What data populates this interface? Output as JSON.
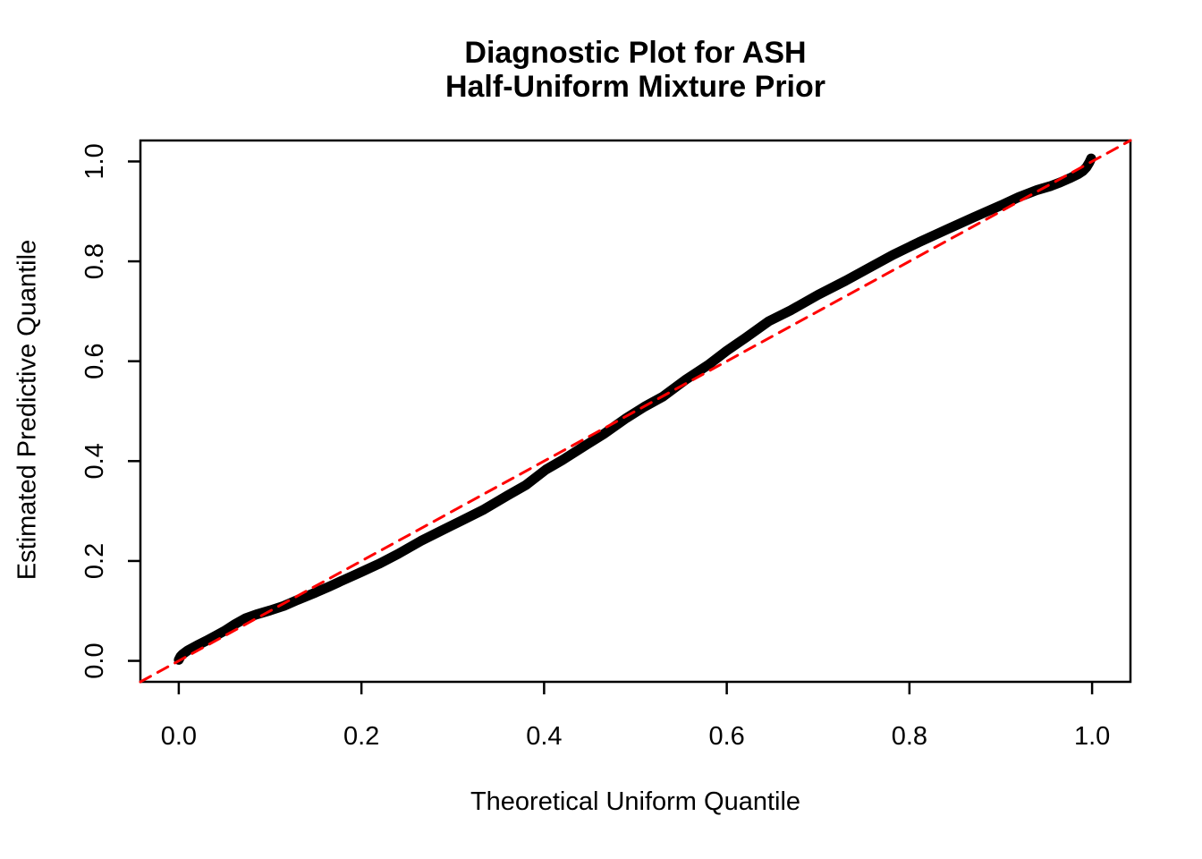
{
  "title": {
    "line1": "Diagnostic Plot for ASH",
    "line2": "Half-Uniform Mixture Prior"
  },
  "chart_data": {
    "type": "line",
    "title": "Diagnostic Plot for ASH\nHalf-Uniform Mixture Prior",
    "xlabel": "Theoretical Uniform Quantile",
    "ylabel": "Estimated Predictive Quantile",
    "xlim": [
      -0.042,
      1.042
    ],
    "ylim": [
      -0.042,
      1.042
    ],
    "x_ticks": [
      0.0,
      0.2,
      0.4,
      0.6,
      0.8,
      1.0
    ],
    "y_ticks": [
      0.0,
      0.2,
      0.4,
      0.6,
      0.8,
      1.0
    ],
    "x_tick_labels": [
      "0.0",
      "0.2",
      "0.4",
      "0.6",
      "0.8",
      "1.0"
    ],
    "y_tick_labels": [
      "0.0",
      "0.2",
      "0.4",
      "0.6",
      "0.8",
      "1.0"
    ],
    "grid": false,
    "legend": null,
    "series": [
      {
        "name": "estimated-predictive-quantiles",
        "kind": "line",
        "color": "#000000",
        "stroke_width": 11,
        "dashed": false,
        "points": [
          [
            0.0,
            0.002
          ],
          [
            0.002,
            0.009
          ],
          [
            0.004,
            0.013
          ],
          [
            0.007,
            0.017
          ],
          [
            0.01,
            0.021
          ],
          [
            0.02,
            0.031
          ],
          [
            0.03,
            0.04
          ],
          [
            0.04,
            0.05
          ],
          [
            0.05,
            0.06
          ],
          [
            0.062,
            0.074
          ],
          [
            0.073,
            0.085
          ],
          [
            0.085,
            0.093
          ],
          [
            0.1,
            0.101
          ],
          [
            0.115,
            0.11
          ],
          [
            0.13,
            0.122
          ],
          [
            0.15,
            0.137
          ],
          [
            0.165,
            0.149
          ],
          [
            0.178,
            0.16
          ],
          [
            0.2,
            0.178
          ],
          [
            0.22,
            0.195
          ],
          [
            0.24,
            0.214
          ],
          [
            0.265,
            0.24
          ],
          [
            0.29,
            0.263
          ],
          [
            0.31,
            0.281
          ],
          [
            0.334,
            0.303
          ],
          [
            0.36,
            0.331
          ],
          [
            0.38,
            0.352
          ],
          [
            0.402,
            0.383
          ],
          [
            0.42,
            0.402
          ],
          [
            0.445,
            0.431
          ],
          [
            0.465,
            0.454
          ],
          [
            0.49,
            0.486
          ],
          [
            0.51,
            0.509
          ],
          [
            0.53,
            0.529
          ],
          [
            0.555,
            0.563
          ],
          [
            0.58,
            0.593
          ],
          [
            0.6,
            0.621
          ],
          [
            0.62,
            0.646
          ],
          [
            0.646,
            0.68
          ],
          [
            0.67,
            0.702
          ],
          [
            0.7,
            0.733
          ],
          [
            0.73,
            0.761
          ],
          [
            0.76,
            0.791
          ],
          [
            0.782,
            0.813
          ],
          [
            0.81,
            0.838
          ],
          [
            0.84,
            0.863
          ],
          [
            0.87,
            0.888
          ],
          [
            0.9,
            0.912
          ],
          [
            0.92,
            0.929
          ],
          [
            0.94,
            0.943
          ],
          [
            0.955,
            0.951
          ],
          [
            0.965,
            0.958
          ],
          [
            0.975,
            0.966
          ],
          [
            0.985,
            0.975
          ],
          [
            0.99,
            0.981
          ],
          [
            0.994,
            0.989
          ],
          [
            0.997,
            0.998
          ],
          [
            0.999,
            1.006
          ]
        ]
      },
      {
        "name": "reference-diagonal",
        "kind": "line",
        "color": "#FF0000",
        "stroke_width": 3,
        "dashed": true,
        "points": [
          [
            -0.042,
            -0.042
          ],
          [
            1.042,
            1.042
          ]
        ]
      }
    ]
  },
  "colors": {
    "curve": "#000000",
    "reference": "#FF0000",
    "axis": "#000000",
    "background": "#FFFFFF"
  }
}
